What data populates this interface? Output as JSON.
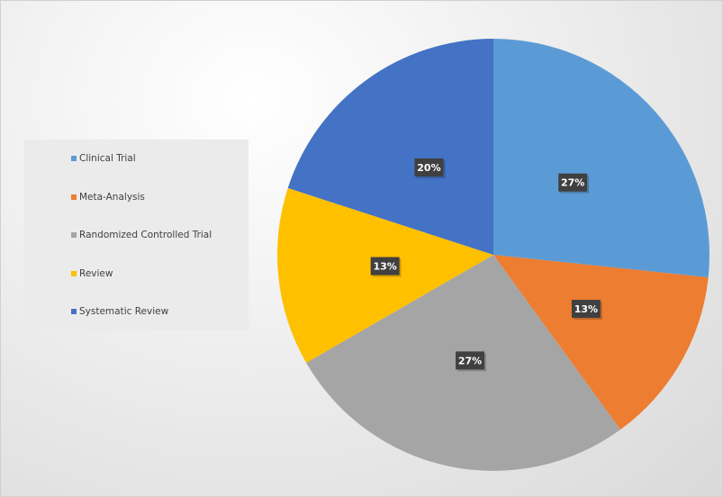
{
  "chart_data": {
    "type": "pie",
    "categories": [
      "Clinical Trial",
      "Meta-Analysis",
      "Randomized Controlled Trial",
      "Review",
      "Systematic Review"
    ],
    "values": [
      26.67,
      13.33,
      26.67,
      13.33,
      20
    ],
    "data_labels": [
      "27%",
      "13%",
      "27%",
      "13%",
      "20%"
    ],
    "colors": [
      "#5b9bd5",
      "#ed7d31",
      "#a5a5a5",
      "#ffc000",
      "#4472c4"
    ],
    "start_angle_deg": 0,
    "direction": "clockwise",
    "legend_position": "left"
  }
}
